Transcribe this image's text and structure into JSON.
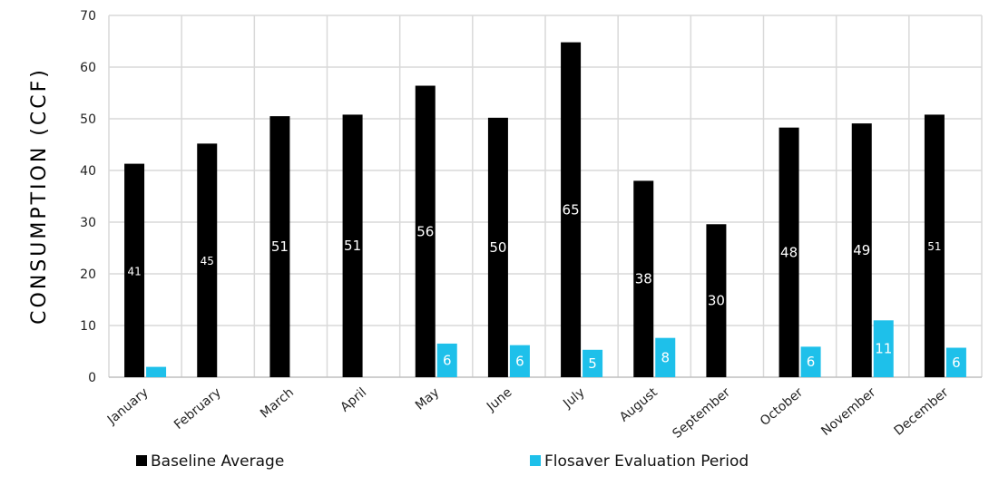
{
  "chart_data": {
    "type": "bar",
    "ylabel": "CONSUMPTION (CCF)",
    "xlabel": "",
    "ylim": [
      0,
      70
    ],
    "yticks": [
      0,
      10,
      20,
      30,
      40,
      50,
      60,
      70
    ],
    "grid": true,
    "legend_position": "bottom",
    "categories": [
      "January",
      "February",
      "March",
      "April",
      "May",
      "June",
      "July",
      "August",
      "September",
      "October",
      "November",
      "December"
    ],
    "series": [
      {
        "name": "Baseline Average",
        "color": "#000000",
        "values": [
          41.3,
          45.2,
          50.5,
          50.8,
          56.4,
          50.2,
          64.8,
          38.0,
          29.6,
          48.3,
          49.1,
          50.8
        ],
        "labels": [
          "41",
          "45",
          "51",
          "51",
          "56",
          "50",
          "65",
          "38",
          "30",
          "48",
          "49",
          "51"
        ]
      },
      {
        "name": "Flosaver Evaluation Period",
        "color": "#1ec0ea",
        "values": [
          2.0,
          null,
          null,
          null,
          6.5,
          6.2,
          5.3,
          7.6,
          null,
          5.9,
          11.0,
          5.7
        ],
        "labels": [
          "",
          "",
          "",
          "",
          "6",
          "6",
          "5",
          "8",
          "",
          "6",
          "11",
          "6"
        ]
      }
    ]
  }
}
